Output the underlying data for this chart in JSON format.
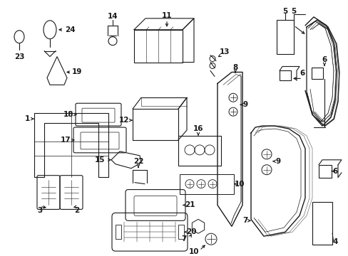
{
  "bg_color": "#ffffff",
  "line_color": "#1a1a1a",
  "text_color": "#1a1a1a",
  "fig_w": 4.89,
  "fig_h": 3.6,
  "dpi": 100
}
